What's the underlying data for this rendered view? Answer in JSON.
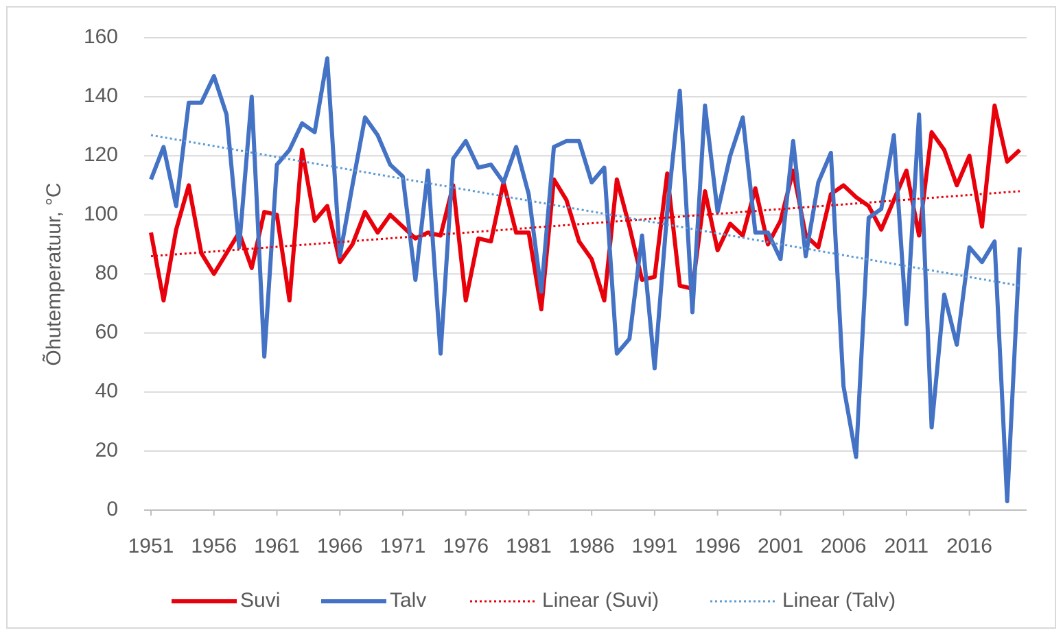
{
  "chart_data": {
    "type": "line",
    "y_label": "Õhutemperatuur, °C",
    "x": [
      1951,
      1952,
      1953,
      1954,
      1955,
      1956,
      1957,
      1958,
      1959,
      1960,
      1961,
      1962,
      1963,
      1964,
      1965,
      1966,
      1967,
      1968,
      1969,
      1970,
      1971,
      1972,
      1973,
      1974,
      1975,
      1976,
      1977,
      1978,
      1979,
      1980,
      1981,
      1982,
      1983,
      1984,
      1985,
      1986,
      1987,
      1988,
      1989,
      1990,
      1991,
      1992,
      1993,
      1994,
      1995,
      1996,
      1997,
      1998,
      1999,
      2000,
      2001,
      2002,
      2003,
      2004,
      2005,
      2006,
      2007,
      2008,
      2009,
      2010,
      2011,
      2012,
      2013,
      2014,
      2015,
      2016,
      2017,
      2018,
      2019,
      2020
    ],
    "series": [
      {
        "name": "Suvi",
        "color": "#e8000b",
        "values": [
          94,
          71,
          95,
          110,
          87,
          80,
          87,
          94,
          82,
          101,
          100,
          71,
          122,
          98,
          103,
          84,
          90,
          101,
          94,
          100,
          96,
          92,
          94,
          93,
          110,
          71,
          92,
          91,
          111,
          94,
          94,
          68,
          112,
          105,
          91,
          85,
          71,
          112,
          96,
          78,
          79,
          114,
          76,
          75,
          108,
          88,
          97,
          93,
          109,
          90,
          98,
          115,
          93,
          89,
          107,
          110,
          106,
          103,
          95,
          105,
          115,
          93,
          128,
          122,
          110,
          120,
          96,
          137,
          118,
          122
        ]
      },
      {
        "name": "Talv",
        "color": "#4472c4",
        "values": [
          112,
          123,
          103,
          138,
          138,
          147,
          134,
          89,
          140,
          52,
          117,
          122,
          131,
          128,
          153,
          86,
          110,
          133,
          127,
          117,
          113,
          78,
          115,
          53,
          119,
          125,
          116,
          117,
          111,
          123,
          107,
          74,
          123,
          125,
          125,
          111,
          116,
          53,
          58,
          93,
          48,
          101,
          142,
          67,
          137,
          101,
          120,
          133,
          94,
          94,
          85,
          125,
          86,
          111,
          121,
          42,
          18,
          99,
          102,
          127,
          63,
          134,
          28,
          73,
          56,
          89,
          84,
          91,
          3,
          89
        ]
      },
      {
        "name": "Linear (Suvi)",
        "color": "#e8000b",
        "dotted": true,
        "x": [
          1951,
          2020
        ],
        "values": [
          86,
          108
        ]
      },
      {
        "name": "Linear (Talv)",
        "color": "#5b9bd5",
        "dotted": true,
        "x": [
          1951,
          2020
        ],
        "values": [
          127,
          76
        ]
      }
    ],
    "xlim": [
      1951,
      2020
    ],
    "xticks": [
      1951,
      1956,
      1961,
      1966,
      1971,
      1976,
      1981,
      1986,
      1991,
      1996,
      2001,
      2006,
      2011,
      2016
    ],
    "ylim": [
      0,
      160
    ],
    "yticks": [
      0,
      20,
      40,
      60,
      80,
      100,
      120,
      140,
      160
    ],
    "grid": true,
    "legend": "bottom"
  }
}
